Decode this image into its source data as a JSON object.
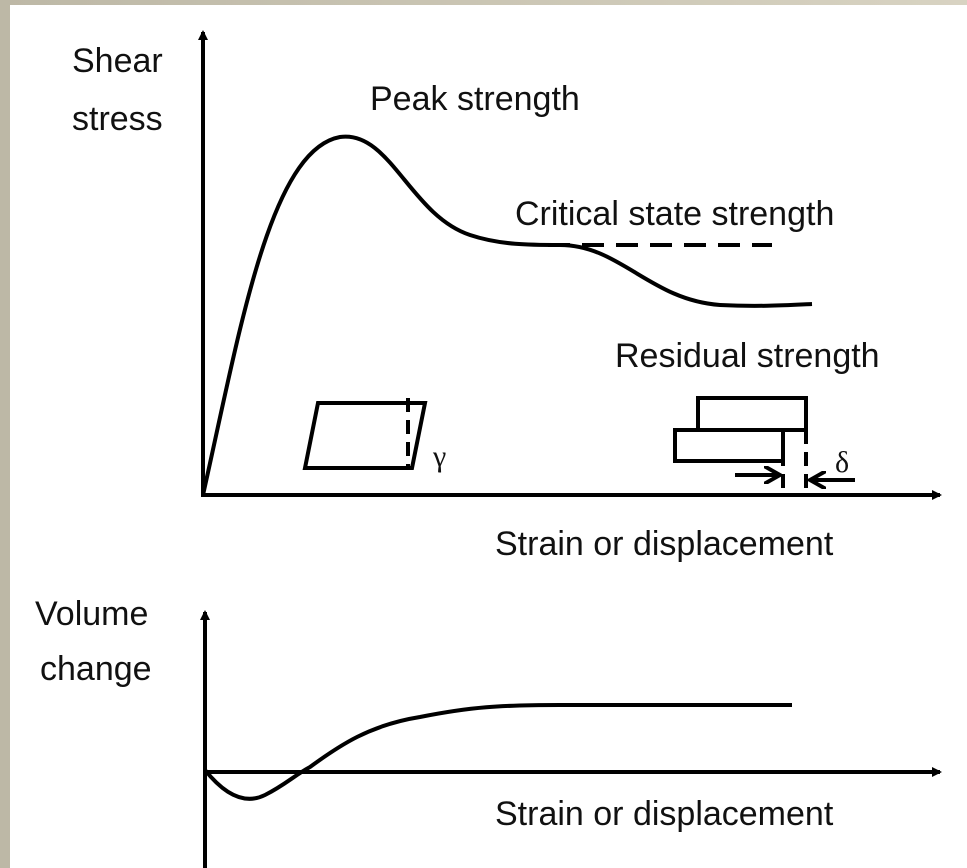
{
  "top_plot": {
    "y_label_lines": [
      "Shear",
      "stress"
    ],
    "x_label": "Strain or displacement",
    "annotations": {
      "peak": "Peak strength",
      "critical": "Critical state strength",
      "residual": "Residual strength"
    },
    "symbols": {
      "gamma": "γ",
      "delta": "δ"
    }
  },
  "bottom_plot": {
    "y_label_lines": [
      "Volume",
      "change"
    ],
    "x_label": "Strain or displacement"
  }
}
